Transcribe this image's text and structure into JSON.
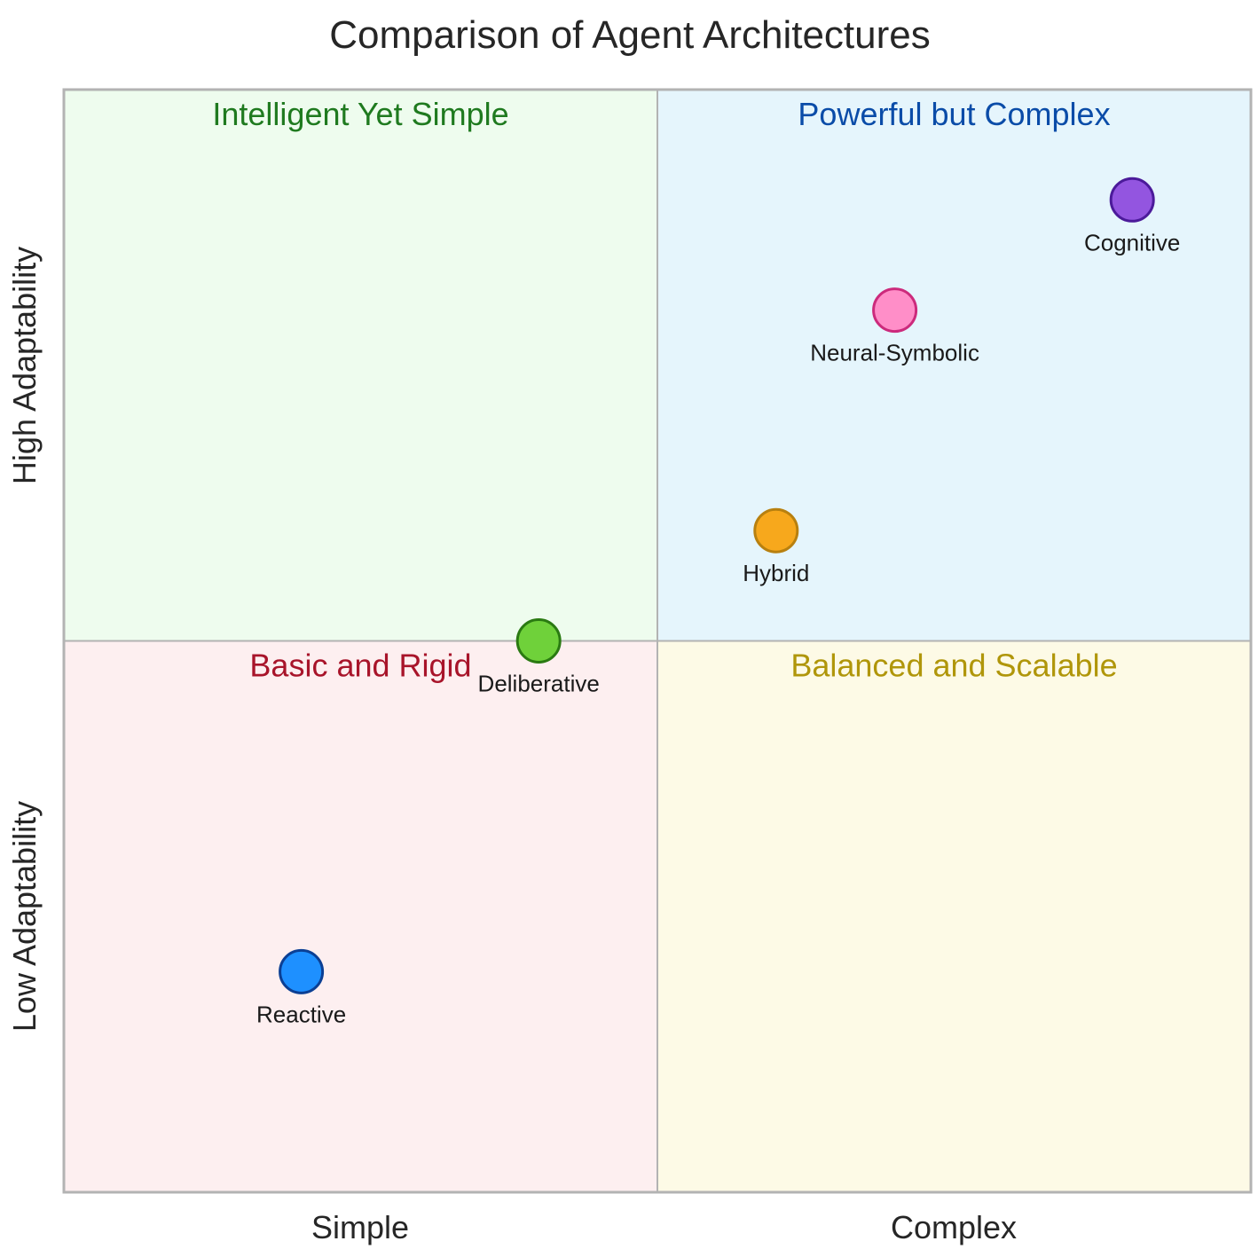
{
  "chart_data": {
    "type": "scatter",
    "title": "Comparison of Agent Architectures",
    "xlim": [
      0,
      1
    ],
    "ylim": [
      0,
      1
    ],
    "x_tick_labels": [
      "Simple",
      "Complex"
    ],
    "y_tick_labels": [
      "Low Adaptability",
      "High Adaptability"
    ],
    "quadrants": [
      {
        "name": "Intelligent Yet Simple",
        "position": "top-left",
        "fill": "#eefcee",
        "color": "#1f7a1f"
      },
      {
        "name": "Powerful but Complex",
        "position": "top-right",
        "fill": "#e5f5fc",
        "color": "#0a4ca8"
      },
      {
        "name": "Basic and Rigid",
        "position": "bottom-left",
        "fill": "#fdeff0",
        "color": "#a8142a"
      },
      {
        "name": "Balanced and Scalable",
        "position": "bottom-right",
        "fill": "#fdfae6",
        "color": "#b0960a"
      }
    ],
    "points": [
      {
        "label": "Reactive",
        "x": 0.2,
        "y": 0.2,
        "color": "#1e90ff",
        "edge": "#0b3f94"
      },
      {
        "label": "Deliberative",
        "x": 0.4,
        "y": 0.5,
        "color": "#6fd13a",
        "edge": "#2a7a12"
      },
      {
        "label": "Hybrid",
        "x": 0.6,
        "y": 0.6,
        "color": "#f7a81c",
        "edge": "#b8800f"
      },
      {
        "label": "Neural-Symbolic",
        "x": 0.7,
        "y": 0.8,
        "color": "#ff8ec8",
        "edge": "#cc2a7c"
      },
      {
        "label": "Cognitive",
        "x": 0.9,
        "y": 0.9,
        "color": "#9355e0",
        "edge": "#4b1a9a"
      }
    ]
  }
}
